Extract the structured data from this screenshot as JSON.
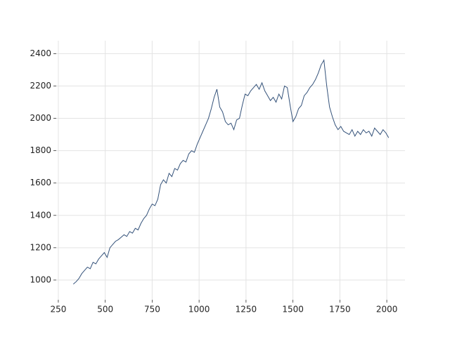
{
  "chart_data": {
    "type": "line",
    "x": [
      330,
      345,
      360,
      375,
      390,
      405,
      420,
      435,
      450,
      465,
      480,
      495,
      510,
      525,
      540,
      555,
      570,
      585,
      600,
      615,
      630,
      645,
      660,
      675,
      690,
      705,
      720,
      735,
      750,
      765,
      780,
      795,
      810,
      825,
      840,
      855,
      870,
      885,
      900,
      915,
      930,
      945,
      960,
      975,
      990,
      1005,
      1020,
      1035,
      1050,
      1065,
      1080,
      1095,
      1110,
      1125,
      1140,
      1155,
      1170,
      1185,
      1200,
      1215,
      1230,
      1245,
      1260,
      1275,
      1290,
      1305,
      1320,
      1335,
      1350,
      1365,
      1380,
      1395,
      1410,
      1425,
      1440,
      1455,
      1470,
      1485,
      1500,
      1515,
      1530,
      1545,
      1560,
      1575,
      1590,
      1605,
      1620,
      1635,
      1650,
      1665,
      1680,
      1695,
      1710,
      1725,
      1740,
      1755,
      1770,
      1785,
      1800,
      1815,
      1830,
      1845,
      1860,
      1875,
      1890,
      1905,
      1920,
      1935,
      1950,
      1965,
      1980,
      1995,
      2010
    ],
    "series": [
      {
        "color": "#34527a",
        "values": [
          975,
          990,
          1010,
          1040,
          1060,
          1080,
          1070,
          1110,
          1100,
          1130,
          1150,
          1170,
          1140,
          1200,
          1220,
          1240,
          1250,
          1265,
          1280,
          1270,
          1300,
          1290,
          1320,
          1310,
          1350,
          1380,
          1400,
          1440,
          1470,
          1460,
          1500,
          1590,
          1620,
          1600,
          1660,
          1640,
          1690,
          1680,
          1720,
          1740,
          1730,
          1780,
          1800,
          1790,
          1840,
          1880,
          1920,
          1960,
          2000,
          2060,
          2130,
          2180,
          2070,
          2040,
          1980,
          1960,
          1970,
          1930,
          1990,
          2000,
          2080,
          2150,
          2140,
          2170,
          2190,
          2210,
          2180,
          2220,
          2170,
          2140,
          2110,
          2130,
          2100,
          2150,
          2120,
          2200,
          2190,
          2080,
          1980,
          2010,
          2060,
          2080,
          2140,
          2160,
          2190,
          2210,
          2240,
          2280,
          2330,
          2360,
          2200,
          2070,
          2010,
          1960,
          1930,
          1950,
          1920,
          1910,
          1900,
          1930,
          1890,
          1920,
          1900,
          1930,
          1910,
          1920,
          1890,
          1940,
          1920,
          1900,
          1930,
          1910,
          1880
        ]
      }
    ],
    "xlim": [
      239,
      2097
    ],
    "ylim": [
      878,
      2480
    ],
    "xticks": [
      250,
      500,
      750,
      1000,
      1250,
      1500,
      1750,
      2000
    ],
    "yticks": [
      1000,
      1200,
      1400,
      1600,
      1800,
      2000,
      2200,
      2400
    ],
    "grid": true
  }
}
